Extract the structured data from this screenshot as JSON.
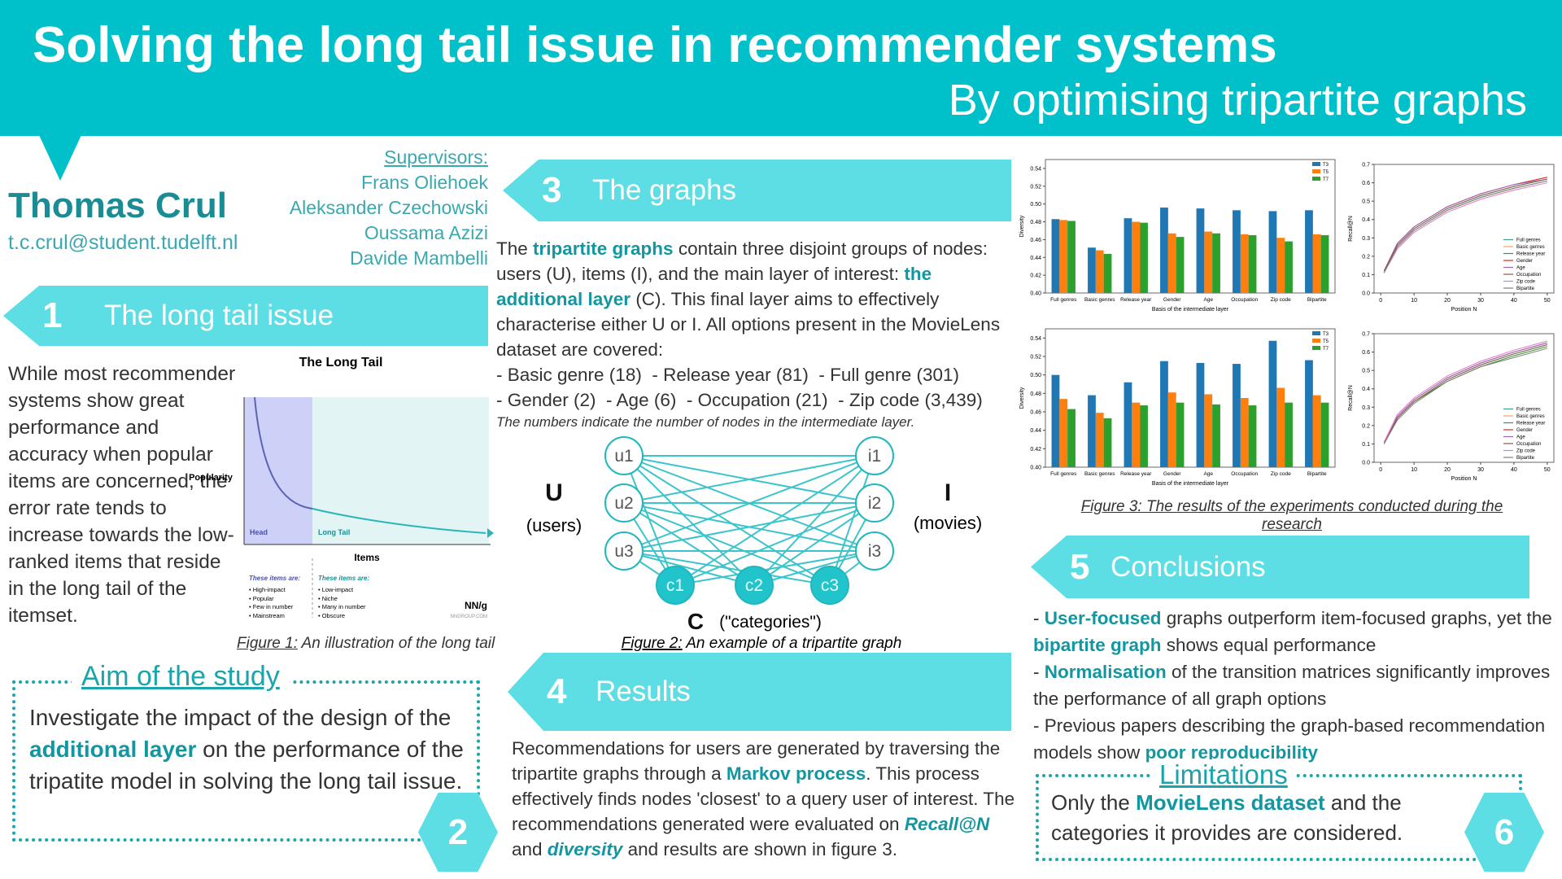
{
  "header": {
    "title": "Solving the long tail issue in recommender systems",
    "subtitle": "By optimising tripartite graphs"
  },
  "author": {
    "name": "Thomas Crul",
    "email": "t.c.crul@student.tudelft.nl"
  },
  "supervisors": {
    "label": "Supervisors:",
    "names": [
      "Frans Oliehoek",
      "Aleksander Czechowski",
      "Oussama Azizi",
      "Davide Mambelli"
    ]
  },
  "section1": {
    "number": 1,
    "title": "The long tail issue",
    "text": [
      "While most recommender systems show great performance and accuracy when popular items are concerned, the error rate tends to increase towards the low-ranked items that reside in the long tail of the itemset."
    ]
  },
  "figure1": {
    "title": "The Long Tail",
    "ylabel": "Popularity",
    "xlabel": "Items",
    "head": "Head",
    "tail": "Long Tail",
    "head_heading": "These items are:",
    "head_items": [
      "• High-impact",
      "• Popular",
      "• Few in number",
      "• Mainstream"
    ],
    "tail_heading": "These items are:",
    "tail_items": [
      "• Low-impact",
      "• Niche",
      "• Many in number",
      "• Obscure"
    ],
    "logo": "NN/g",
    "site": "NNGROUP.COM",
    "caption_prefix": "Figure 1:",
    "caption": " An illustration of the long tail"
  },
  "section2": {
    "number": 2,
    "title": "Aim of the study",
    "text": [
      "Investigate the impact of the design of the ",
      "additional layer",
      " on the performance of the tripatite model in solving the long tail issue."
    ]
  },
  "section3": {
    "number": 3,
    "title": "The graphs",
    "text": [
      "The ",
      "tripartite graphs",
      " contain three disjoint groups of nodes: users (U), items (I), and the main layer of interest: ",
      "the additional layer",
      " (C). This final layer aims to effectively characterise either U or I. All options present in the MovieLens dataset are covered:"
    ],
    "options": [
      "- Basic genre (18)  - Release year (81)  - Full genre (301)",
      "- Gender (2)  - Age (6)  - Occupation (21)  - Zip code (3,439)"
    ],
    "note": "The numbers indicate the number of nodes in the intermediate layer."
  },
  "figure2": {
    "nodes": [
      "u1",
      "u2",
      "u3",
      "i1",
      "i2",
      "i3",
      "c1",
      "c2",
      "c3"
    ],
    "groups": [
      {
        "letter": "U",
        "label": "(users)"
      },
      {
        "letter": "I",
        "label": "(movies)"
      },
      {
        "letter": "C",
        "label": "(\"categories\")"
      }
    ],
    "caption_prefix": "Figure 2:",
    "caption": " An example of a tripartite graph"
  },
  "section4": {
    "number": 4,
    "title": "Results",
    "text": [
      "Recommendations for users are generated by traversing the tripartite graphs through a ",
      "Markov process",
      ". This process effectively finds nodes 'closest' to a query user of interest. The recommendations generated were evaluated on ",
      "Recall@N",
      " and ",
      "diversity",
      " and results are shown in figure 3."
    ]
  },
  "figure3": {
    "caption": "Figure 3: The results of the experiments conducted during the research"
  },
  "section5": {
    "number": 5,
    "title": "Conclusions",
    "items": [
      [
        "- ",
        "User-focused",
        " graphs outperform item-focused graphs, yet the ",
        "bipartite graph",
        " shows equal performance"
      ],
      [
        "- ",
        "Normalisation",
        " of the transition matrices significantly improves the performance of all graph options"
      ],
      [
        "- Previous papers describing the graph-based recommendation models show ",
        "poor reproducibility"
      ]
    ]
  },
  "section6": {
    "number": 6,
    "title": "Limitations",
    "text": [
      "Only the ",
      "MovieLens dataset",
      " and the categories it provides are considered."
    ]
  },
  "chart_data": [
    {
      "type": "bar",
      "xlabel": "Basis of the intermediate layer",
      "ylabel": "Diversity",
      "categories": [
        "Full genres",
        "Basic genres",
        "Release year",
        "Gender",
        "Age",
        "Occupation",
        "Zip code",
        "Bipartite"
      ],
      "series": [
        {
          "name": "T3",
          "color": "#1f77b4",
          "values": [
            0.483,
            0.451,
            0.484,
            0.496,
            0.495,
            0.493,
            0.492,
            0.493
          ]
        },
        {
          "name": "T5",
          "color": "#ff7f0e",
          "values": [
            0.482,
            0.448,
            0.48,
            0.467,
            0.469,
            0.466,
            0.462,
            0.466
          ]
        },
        {
          "name": "T7",
          "color": "#2ca02c",
          "values": [
            0.481,
            0.444,
            0.479,
            0.463,
            0.467,
            0.465,
            0.458,
            0.465
          ]
        }
      ],
      "ylim": [
        0.4,
        0.55
      ],
      "yticks": [
        {
          "value": 0.4,
          "label": "0.40"
        },
        0.42,
        0.44,
        0.46,
        0.48,
        {
          "value": 0.5,
          "label": "0.50"
        },
        0.52,
        0.54
      ],
      "legend": "upper right"
    },
    {
      "type": "line",
      "xlabel": "Position N",
      "ylabel": "Recall@N",
      "x": [
        1,
        5,
        10,
        20,
        30,
        40,
        50
      ],
      "series": [
        {
          "name": "Full genres",
          "color": "#3a9e8c",
          "values": [
            0.11,
            0.26,
            0.35,
            0.46,
            0.53,
            0.58,
            0.62
          ]
        },
        {
          "name": "Basic genres",
          "color": "#f4a261",
          "values": [
            0.12,
            0.27,
            0.36,
            0.47,
            0.54,
            0.59,
            0.63
          ]
        },
        {
          "name": "Release year",
          "color": "#2ca02c",
          "values": [
            0.11,
            0.25,
            0.34,
            0.45,
            0.52,
            0.57,
            0.61
          ]
        },
        {
          "name": "Gender",
          "color": "#d62728",
          "values": [
            0.12,
            0.27,
            0.36,
            0.47,
            0.54,
            0.59,
            0.63
          ]
        },
        {
          "name": "Age",
          "color": "#9467bd",
          "values": [
            0.12,
            0.27,
            0.36,
            0.47,
            0.54,
            0.59,
            0.62
          ]
        },
        {
          "name": "Occupation",
          "color": "#8c564b",
          "values": [
            0.12,
            0.26,
            0.35,
            0.46,
            0.53,
            0.58,
            0.62
          ]
        },
        {
          "name": "Zip code",
          "color": "#e377c2",
          "values": [
            0.11,
            0.24,
            0.33,
            0.44,
            0.51,
            0.56,
            0.6
          ]
        },
        {
          "name": "Bipartite",
          "color": "#7f7f7f",
          "values": [
            0.11,
            0.25,
            0.34,
            0.45,
            0.52,
            0.57,
            0.61
          ]
        }
      ],
      "xlim": [
        -2,
        52
      ],
      "xticks": [
        0,
        10,
        20,
        30,
        40,
        50
      ],
      "ylim": [
        0,
        0.7
      ],
      "yticks": [
        {
          "value": 0,
          "label": "0.0"
        },
        0.1,
        0.2,
        0.3,
        0.4,
        0.5,
        0.6,
        0.7
      ],
      "legend": "lower right"
    },
    {
      "type": "bar",
      "xlabel": "Basis of the intermediate layer",
      "ylabel": "Diversity",
      "categories": [
        "Full genres",
        "Basic genres",
        "Release year",
        "Gender",
        "Age",
        "Occupation",
        "Zip code",
        "Bipartite"
      ],
      "series": [
        {
          "name": "T3",
          "color": "#1f77b4",
          "values": [
            0.5,
            0.478,
            0.492,
            0.515,
            0.513,
            0.512,
            0.537,
            0.516
          ]
        },
        {
          "name": "T5",
          "color": "#ff7f0e",
          "values": [
            0.474,
            0.459,
            0.47,
            0.481,
            0.479,
            0.475,
            0.486,
            0.478
          ]
        },
        {
          "name": "T7",
          "color": "#2ca02c",
          "values": [
            0.463,
            0.453,
            0.467,
            0.47,
            0.468,
            0.467,
            0.47,
            0.47
          ]
        }
      ],
      "ylim": [
        0.4,
        0.55
      ],
      "yticks": [
        {
          "value": 0.4,
          "label": "0.40"
        },
        0.42,
        0.44,
        0.46,
        0.48,
        {
          "value": 0.5,
          "label": "0.50"
        },
        0.52,
        0.54
      ],
      "legend": "upper right"
    },
    {
      "type": "line",
      "xlabel": "Position N",
      "ylabel": "Recall@N",
      "x": [
        1,
        5,
        10,
        20,
        30,
        40,
        50
      ],
      "series": [
        {
          "name": "Full genres",
          "color": "#3a9e8c",
          "values": [
            0.1,
            0.24,
            0.33,
            0.45,
            0.53,
            0.59,
            0.64
          ]
        },
        {
          "name": "Basic genres",
          "color": "#f4a261",
          "values": [
            0.1,
            0.24,
            0.33,
            0.44,
            0.52,
            0.58,
            0.63
          ]
        },
        {
          "name": "Release year",
          "color": "#2ca02c",
          "values": [
            0.1,
            0.24,
            0.33,
            0.44,
            0.52,
            0.58,
            0.63
          ]
        },
        {
          "name": "Gender",
          "color": "#d62728",
          "values": [
            0.11,
            0.25,
            0.34,
            0.46,
            0.54,
            0.6,
            0.65
          ]
        },
        {
          "name": "Age",
          "color": "#9467bd",
          "values": [
            0.11,
            0.25,
            0.34,
            0.46,
            0.54,
            0.6,
            0.65
          ]
        },
        {
          "name": "Occupation",
          "color": "#8c564b",
          "values": [
            0.1,
            0.24,
            0.33,
            0.45,
            0.53,
            0.59,
            0.64
          ]
        },
        {
          "name": "Zip code",
          "color": "#e377c2",
          "values": [
            0.11,
            0.26,
            0.35,
            0.47,
            0.55,
            0.61,
            0.66
          ]
        },
        {
          "name": "Bipartite",
          "color": "#7f7f7f",
          "values": [
            0.1,
            0.23,
            0.32,
            0.44,
            0.52,
            0.57,
            0.62
          ]
        }
      ],
      "xlim": [
        -2,
        52
      ],
      "xticks": [
        0,
        10,
        20,
        30,
        40,
        50
      ],
      "ylim": [
        0,
        0.7
      ],
      "yticks": [
        {
          "value": 0,
          "label": "0.0"
        },
        0.1,
        0.2,
        0.3,
        0.4,
        0.5,
        0.6,
        0.7
      ],
      "legend": "lower right"
    }
  ]
}
